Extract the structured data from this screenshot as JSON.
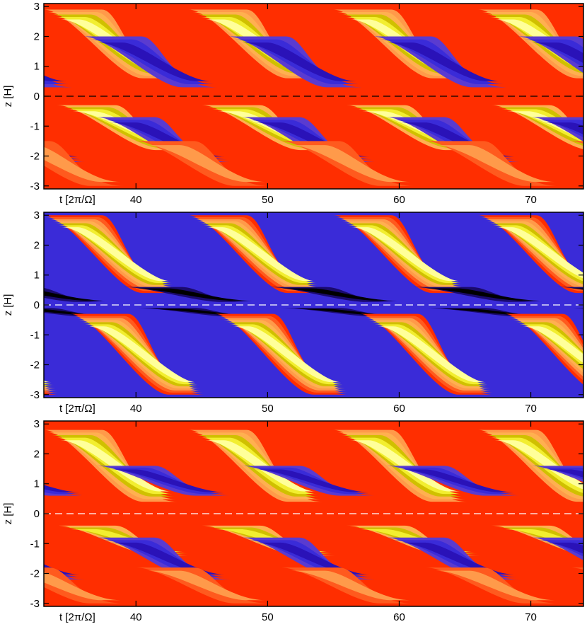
{
  "colors": {
    "scale": [
      "#000000",
      "#1a0a6e",
      "#2a12b8",
      "#3a2bd8",
      "#5a3bd0",
      "#8a1010",
      "#b00000",
      "#e01414",
      "#ff2e00",
      "#ff5a1e",
      "#ff9a4a",
      "#ffb050",
      "#d0c000",
      "#f2ee30",
      "#ffff9a",
      "#ffffff"
    ],
    "midplane_line": "#ffffff",
    "midplane_line_panel1": "#000000",
    "axis": "#000000"
  },
  "chart_data": [
    {
      "type": "heatmap",
      "panel": 1,
      "xlabel": "t [2π/Ω]",
      "ylabel": "z [H]",
      "xlim": [
        33,
        74
      ],
      "ylim": [
        -3.1,
        3.1
      ],
      "xticks": [
        "40",
        "50",
        "60",
        "70"
      ],
      "yticks": [
        "3",
        "2",
        "1",
        "0",
        "-1",
        "-2",
        "-3"
      ],
      "period": 11,
      "dashed_line_at": 0,
      "background_level": 8,
      "bands": [
        {
          "hemisphere": "north",
          "z_start": 2.9,
          "z_end": 0.6,
          "t_offset": 0,
          "levels": [
            10,
            11,
            12,
            13,
            14
          ]
        },
        {
          "hemisphere": "north",
          "z_start": 2.0,
          "z_end": 0.3,
          "t_offset": 3,
          "levels": [
            4,
            3,
            2
          ]
        },
        {
          "hemisphere": "south",
          "z_start": -0.3,
          "z_end": -1.8,
          "t_offset": 1,
          "levels": [
            11,
            12,
            13,
            14
          ]
        },
        {
          "hemisphere": "south",
          "z_start": -0.7,
          "z_end": -2.2,
          "t_offset": 4,
          "levels": [
            4,
            3,
            2
          ]
        },
        {
          "hemisphere": "south",
          "z_start": -1.5,
          "z_end": -3.0,
          "t_offset": 7,
          "levels": [
            9,
            10
          ]
        }
      ]
    },
    {
      "type": "heatmap",
      "panel": 2,
      "xlabel": "t [2π/Ω]",
      "ylabel": "z [H]",
      "xlim": [
        33,
        74
      ],
      "ylim": [
        -3.1,
        3.1
      ],
      "xticks": [
        "40",
        "50",
        "60",
        "70"
      ],
      "yticks": [
        "3",
        "2",
        "1",
        "0",
        "-1",
        "-2",
        "-3"
      ],
      "period": 11,
      "dashed_line_at": 0,
      "background_level": 3,
      "bands": [
        {
          "hemisphere": "north",
          "z_start": 3.0,
          "z_end": 0.4,
          "t_offset": 0,
          "levels": [
            8,
            9,
            10,
            11,
            12,
            13,
            14
          ]
        },
        {
          "hemisphere": "south",
          "z_start": -0.3,
          "z_end": -3.0,
          "t_offset": 2,
          "levels": [
            8,
            9,
            10,
            11,
            12,
            13,
            14
          ]
        },
        {
          "hemisphere": "north",
          "z_start": 0.6,
          "z_end": 0.1,
          "t_offset": 6,
          "levels": [
            1,
            0
          ]
        },
        {
          "hemisphere": "south",
          "z_start": -0.1,
          "z_end": -0.4,
          "t_offset": 7,
          "levels": [
            1,
            0
          ]
        }
      ]
    },
    {
      "type": "heatmap",
      "panel": 3,
      "xlabel": "t [2π/Ω]",
      "ylabel": "z [H]",
      "xlim": [
        33,
        74
      ],
      "ylim": [
        -3.1,
        3.1
      ],
      "xticks": [
        "40",
        "50",
        "60",
        "70"
      ],
      "yticks": [
        "3",
        "2",
        "1",
        "0",
        "-1",
        "-2",
        "-3"
      ],
      "period": 11,
      "dashed_line_at": 0,
      "background_level": 8,
      "bands": [
        {
          "hemisphere": "north",
          "z_start": 2.8,
          "z_end": 0.4,
          "t_offset": 0,
          "levels": [
            10,
            11,
            12,
            13,
            14
          ]
        },
        {
          "hemisphere": "north",
          "z_start": 1.6,
          "z_end": 0.6,
          "t_offset": 4,
          "levels": [
            4,
            3,
            2
          ]
        },
        {
          "hemisphere": "south",
          "z_start": -0.4,
          "z_end": -1.4,
          "t_offset": 1,
          "levels": [
            11,
            12,
            13
          ]
        },
        {
          "hemisphere": "south",
          "z_start": -0.8,
          "z_end": -2.2,
          "t_offset": 4,
          "levels": [
            4,
            3,
            2
          ]
        },
        {
          "hemisphere": "south",
          "z_start": -1.8,
          "z_end": -3.0,
          "t_offset": 7,
          "levels": [
            9,
            10
          ]
        }
      ]
    }
  ]
}
